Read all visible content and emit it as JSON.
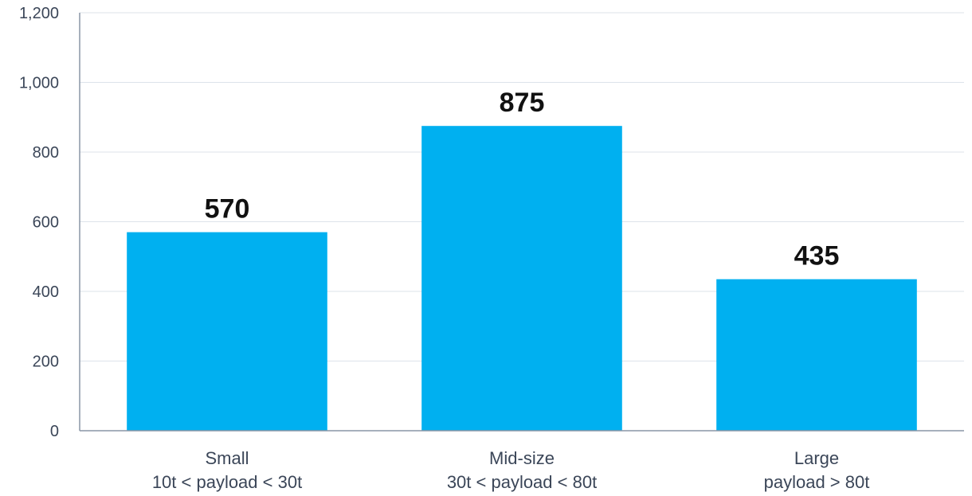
{
  "chart_data": {
    "type": "bar",
    "categories": [
      [
        "Small",
        "10t < payload < 30t"
      ],
      [
        "Mid-size",
        "30t < payload < 80t"
      ],
      [
        "Large",
        "payload > 80t"
      ]
    ],
    "values": [
      570,
      875,
      435
    ],
    "data_labels": [
      "570",
      "875",
      "435"
    ],
    "yticks": [
      0,
      200,
      400,
      600,
      800,
      1000,
      1200
    ],
    "ytick_labels": [
      "0",
      "200",
      "400",
      "600",
      "800",
      "1,000",
      "1,200"
    ],
    "ylim": [
      0,
      1200
    ],
    "grid": true,
    "legend": "none",
    "colors": {
      "bar": "#00b0f0",
      "grid": "#dde3ea",
      "axis": "#8a96a6"
    }
  }
}
